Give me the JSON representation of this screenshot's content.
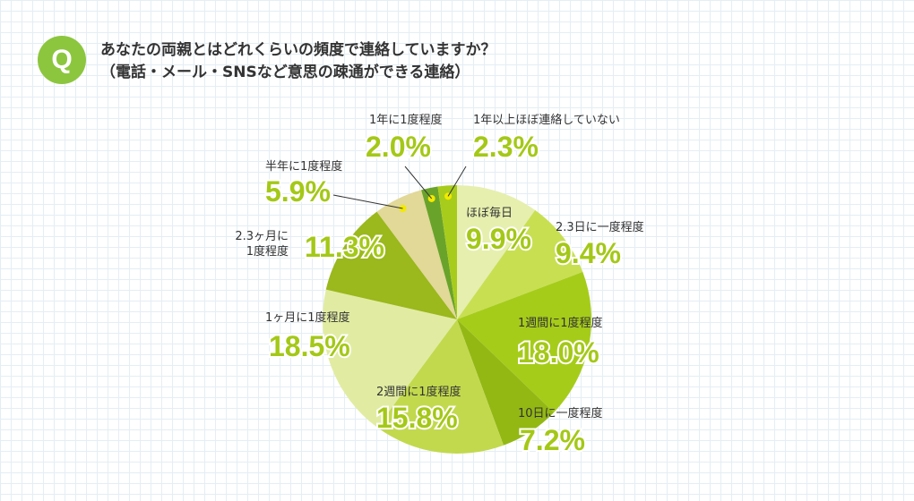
{
  "header": {
    "badge": "Q",
    "question_line1": "あなたの両親とはどれくらいの頻度で連絡していますか？",
    "question_line2": "（電話・メール・SNSなど意思の疎通ができる連絡）"
  },
  "chart_data": {
    "type": "pie",
    "start": "12 o'clock, clockwise",
    "slices": [
      {
        "label": "ほぼ毎日",
        "value": 9.9,
        "display": "9.9%",
        "color": "#e6efae"
      },
      {
        "label": "2.3日に一度程度",
        "value": 9.4,
        "display": "9.4%",
        "color": "#c8df52"
      },
      {
        "label": "1週間に1度程度",
        "value": 18.0,
        "display": "18.0%",
        "color": "#a6cc1a"
      },
      {
        "label": "10日に一度程度",
        "value": 7.2,
        "display": "7.2%",
        "color": "#93b814"
      },
      {
        "label": "2週間に1度程度",
        "value": 15.8,
        "display": "15.8%",
        "color": "#c2d94e"
      },
      {
        "label": "1ヶ月に1度程度",
        "value": 18.5,
        "display": "18.5%",
        "color": "#e1eca2"
      },
      {
        "label": "2.3ヶ月に1度程度",
        "value": 11.3,
        "display": "11.3%",
        "color": "#9bb81c"
      },
      {
        "label": "半年に1度程度",
        "value": 5.9,
        "display": "5.9%",
        "color": "#e2d898"
      },
      {
        "label": "1年に1度程度",
        "value": 2.0,
        "display": "2.0%",
        "color": "#6aa32a"
      },
      {
        "label": "1年以上ほぼ連絡していない",
        "value": 2.3,
        "display": "2.3%",
        "color": "#a7cc1c"
      }
    ],
    "marker_color": "#f2ea00",
    "label_color": "#a4c817"
  }
}
